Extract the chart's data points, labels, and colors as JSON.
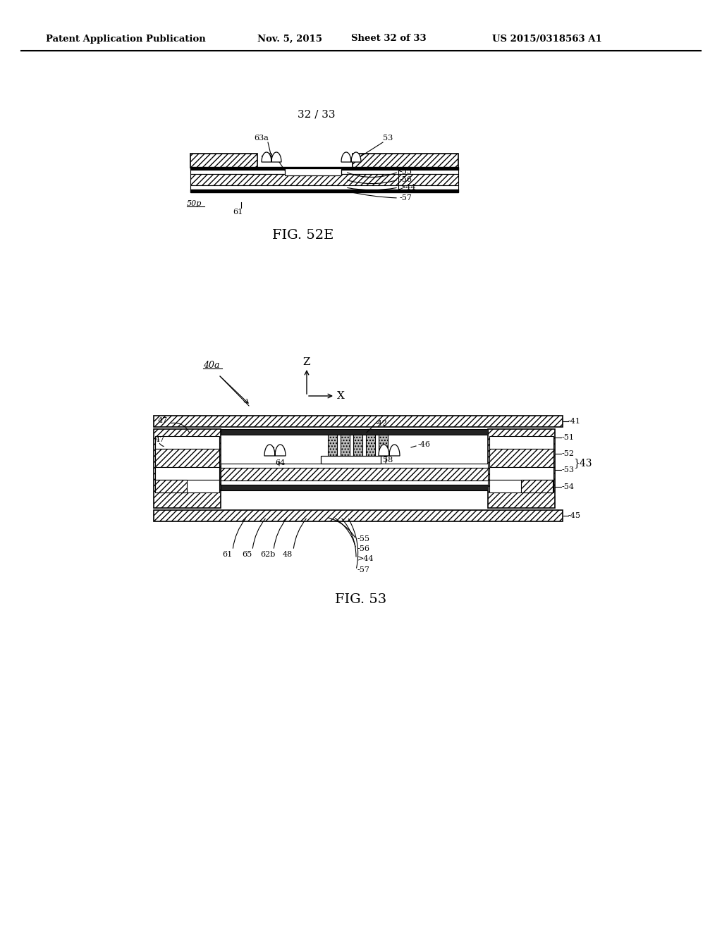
{
  "background_color": "#ffffff",
  "header_text": "Patent Application Publication",
  "header_date": "Nov. 5, 2015",
  "header_sheet": "Sheet 32 of 33",
  "header_patent": "US 2015/0318563 A1",
  "page_label": "32 / 33",
  "fig52e_label": "FIG. 52E",
  "fig53_label": "FIG. 53",
  "label_50p": "50p",
  "label_40a": "40a"
}
